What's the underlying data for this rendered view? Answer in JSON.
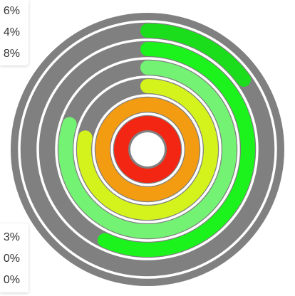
{
  "chart_data": {
    "type": "radial-bar",
    "track_color": "#808080",
    "rings": [
      {
        "value": 100,
        "color": "#f22613"
      },
      {
        "value": 100,
        "color": "#f39c12"
      },
      {
        "value": 78,
        "color": "#d4f21c"
      },
      {
        "value": 80,
        "color": "#74f274"
      },
      {
        "value": 57,
        "color": "#1cf21c"
      },
      {
        "value": 15,
        "color": "#1cdd1c"
      }
    ],
    "max": 100,
    "legend_top": [
      "6%",
      "4%",
      "8%"
    ],
    "legend_bottom": [
      "3%",
      "0%",
      "0%"
    ]
  }
}
